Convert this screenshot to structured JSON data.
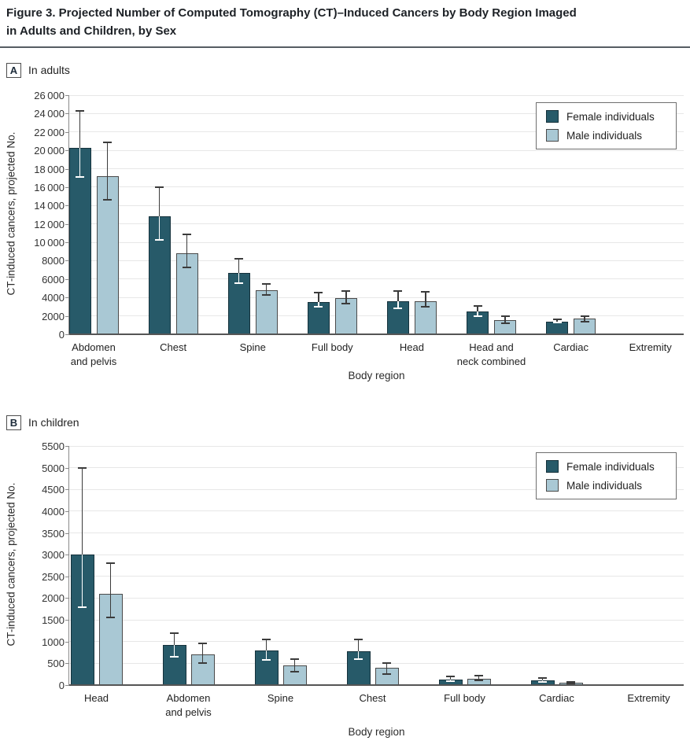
{
  "figure": {
    "title_line1": "Figure 3. Projected Number of Computed Tomography (CT)–Induced Cancers by Body Region Imaged",
    "title_line2": "in Adults and Children, by Sex"
  },
  "legend": {
    "items": [
      {
        "label": "Female individuals",
        "color_key": "female"
      },
      {
        "label": "Male individuals",
        "color_key": "male"
      }
    ],
    "position": "top-right"
  },
  "colors": {
    "female": "#275a69",
    "female_border": "#16323c",
    "male": "#a9c8d4",
    "male_border": "#4a4a4a",
    "error": "#3b3b3b",
    "error_inside_female": "#ffffff",
    "grid": "#e7e7e7",
    "axis": "#8a8a8a",
    "baseline": "#555555"
  },
  "chart_data": [
    {
      "type": "bar",
      "panel_label": "A",
      "panel_title": "In adults",
      "title": "In adults",
      "xlabel": "Body region",
      "ylabel": "CT-induced cancers, projected No.",
      "ylim": [
        0,
        26000
      ],
      "ytick_interval": 2000,
      "ytick_labels": [
        "0",
        "2000",
        "4000",
        "6000",
        "8000",
        "10 000",
        "12 000",
        "14 000",
        "16 000",
        "18 000",
        "20 000",
        "22 000",
        "24 000",
        "26 000"
      ],
      "grid": true,
      "legend_position": "top-right",
      "categories": [
        "Abdomen and pelvis",
        "Chest",
        "Spine",
        "Full body",
        "Head",
        "Head and neck combined",
        "Cardiac",
        "Extremity"
      ],
      "categories_display": [
        [
          "Abdomen",
          "and pelvis"
        ],
        [
          "Chest"
        ],
        [
          "Spine"
        ],
        [
          "Full body"
        ],
        [
          "Head"
        ],
        [
          "Head and",
          "neck combined"
        ],
        [
          "Cardiac"
        ],
        [
          "Extremity"
        ]
      ],
      "series": [
        {
          "name": "Female individuals",
          "values": [
            20300,
            12800,
            6700,
            3500,
            3600,
            2500,
            1400,
            80
          ],
          "ci_low": [
            17100,
            10300,
            5600,
            3000,
            2800,
            2000,
            1300,
            60
          ],
          "ci_high": [
            24300,
            16000,
            8200,
            4500,
            4700,
            3100,
            1600,
            100
          ]
        },
        {
          "name": "Male individuals",
          "values": [
            17200,
            8800,
            4800,
            3900,
            3600,
            1500,
            1700,
            80
          ],
          "ci_low": [
            14600,
            7300,
            4300,
            3300,
            3000,
            1200,
            1400,
            60
          ],
          "ci_high": [
            20900,
            10900,
            5500,
            4700,
            4600,
            2000,
            1950,
            100
          ]
        }
      ]
    },
    {
      "type": "bar",
      "panel_label": "B",
      "panel_title": "In children",
      "title": "In children",
      "xlabel": "Body region",
      "ylabel": "CT-induced cancers, projected No.",
      "ylim": [
        0,
        5500
      ],
      "ytick_interval": 500,
      "ytick_labels": [
        "0",
        "500",
        "1000",
        "1500",
        "2000",
        "2500",
        "3000",
        "3500",
        "4000",
        "4500",
        "5000",
        "5500"
      ],
      "grid": true,
      "legend_position": "top-right",
      "categories": [
        "Head",
        "Abdomen and pelvis",
        "Spine",
        "Chest",
        "Full body",
        "Cardiac",
        "Extremity"
      ],
      "categories_display": [
        [
          "Head"
        ],
        [
          "Abdomen",
          "and pelvis"
        ],
        [
          "Spine"
        ],
        [
          "Chest"
        ],
        [
          "Full body"
        ],
        [
          "Cardiac"
        ],
        [
          "Extremity"
        ]
      ],
      "series": [
        {
          "name": "Female individuals",
          "values": [
            3000,
            920,
            790,
            780,
            130,
            110,
            15
          ],
          "ci_low": [
            1800,
            650,
            570,
            590,
            90,
            70,
            5
          ],
          "ci_high": [
            5000,
            1200,
            1050,
            1050,
            190,
            160,
            25
          ]
        },
        {
          "name": "Male individuals",
          "values": [
            2100,
            710,
            450,
            400,
            150,
            50,
            15
          ],
          "ci_low": [
            1550,
            500,
            300,
            250,
            100,
            30,
            5
          ],
          "ci_high": [
            2800,
            950,
            600,
            500,
            210,
            80,
            25
          ]
        }
      ]
    }
  ]
}
